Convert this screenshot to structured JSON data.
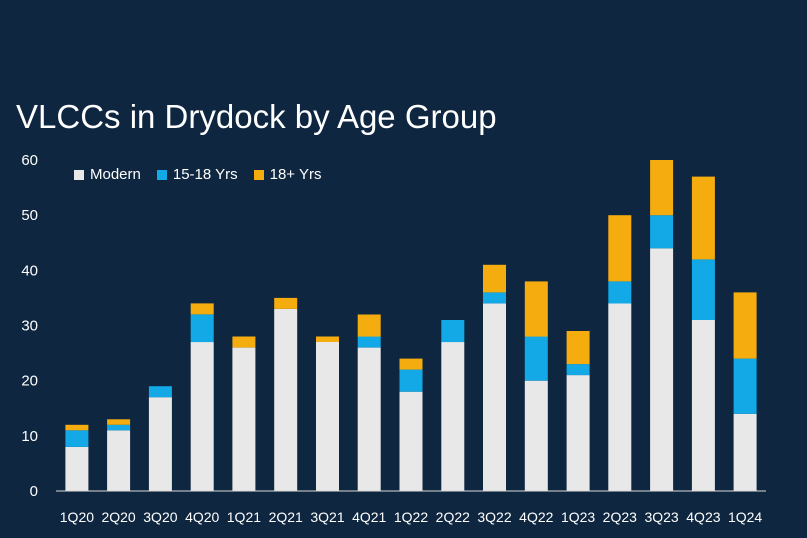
{
  "chart_data": {
    "type": "bar",
    "stacked": true,
    "title": "VLCCs in Drydock by Age Group",
    "categories": [
      "1Q20",
      "2Q20",
      "3Q20",
      "4Q20",
      "1Q21",
      "2Q21",
      "3Q21",
      "4Q21",
      "1Q22",
      "2Q22",
      "3Q22",
      "4Q22",
      "1Q23",
      "2Q23",
      "3Q23",
      "4Q23",
      "1Q24"
    ],
    "series": [
      {
        "name": "Modern",
        "color": "#e8e8e8",
        "values": [
          8,
          11,
          17,
          27,
          26,
          33,
          27,
          26,
          18,
          27,
          34,
          20,
          21,
          34,
          44,
          31,
          14
        ]
      },
      {
        "name": "15-18 Yrs",
        "color": "#12a9e6",
        "values": [
          3,
          1,
          2,
          5,
          0,
          0,
          0,
          2,
          4,
          4,
          2,
          8,
          2,
          4,
          6,
          11,
          10
        ]
      },
      {
        "name": "18+ Yrs",
        "color": "#f5ac0f",
        "values": [
          1,
          1,
          0,
          2,
          2,
          2,
          1,
          4,
          2,
          0,
          5,
          10,
          6,
          12,
          10,
          15,
          12
        ]
      }
    ],
    "ylim": [
      0,
      60
    ],
    "yticks": [
      0,
      10,
      20,
      30,
      40,
      50,
      60
    ],
    "xlabel": "",
    "ylabel": "",
    "grid": false,
    "legend_position": "top-left"
  },
  "colors": {
    "background": "#0e2640",
    "text": "#ffffff",
    "axis": "#d9d9d9"
  }
}
